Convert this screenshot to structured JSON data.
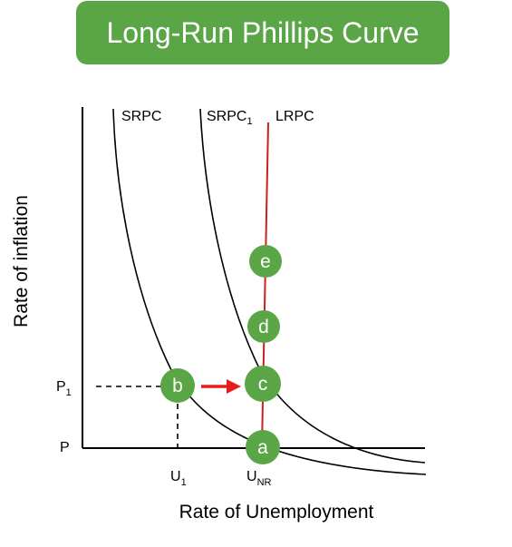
{
  "title": "Long-Run Phillips Curve",
  "axes": {
    "x_title": "Rate of Unemployment",
    "y_title": "Rate of inflation"
  },
  "curves": {
    "srpc": "SRPC",
    "srpc1_main": "SRPC",
    "srpc1_sub": "1",
    "lrpc": "LRPC"
  },
  "ticks": {
    "p": "P",
    "p1_main": "P",
    "p1_sub": "1",
    "u1_main": "U",
    "u1_sub": "1",
    "unr_main": "U",
    "unr_sub": "NR"
  },
  "points": {
    "a": "a",
    "b": "b",
    "c": "c",
    "d": "d",
    "e": "e"
  },
  "colors": {
    "banner": "#5aa646",
    "point": "#5aa646",
    "lrpc_line": "#cc1f1f",
    "arrow": "#e81c1c"
  }
}
